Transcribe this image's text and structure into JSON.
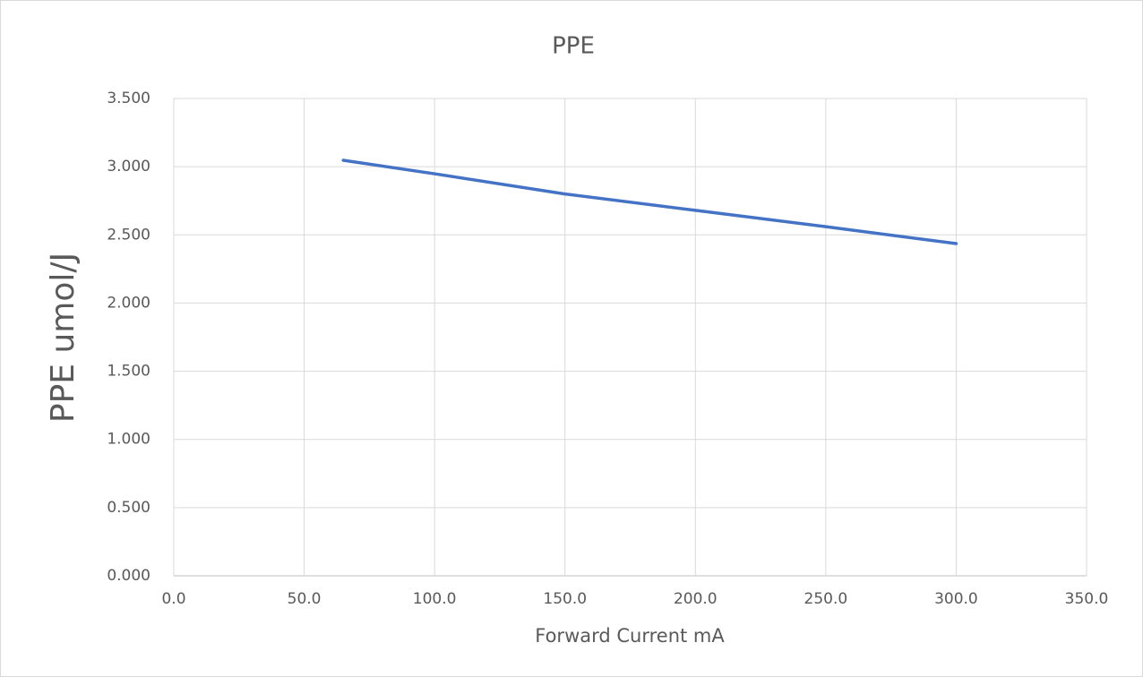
{
  "chart_data": {
    "type": "line",
    "title": "PPE",
    "x_label": "Forward Current mA",
    "y_label": "PPE umol/J",
    "xlim": [
      0,
      350
    ],
    "ylim": [
      0,
      3.5
    ],
    "xticks": [
      {
        "value": 0,
        "label": "0.0"
      },
      {
        "value": 50,
        "label": "50.0"
      },
      {
        "value": 100,
        "label": "100.0"
      },
      {
        "value": 150,
        "label": "150.0"
      },
      {
        "value": 200,
        "label": "200.0"
      },
      {
        "value": 250,
        "label": "250.0"
      },
      {
        "value": 300,
        "label": "300.0"
      },
      {
        "value": 350,
        "label": "350.0"
      }
    ],
    "yticks": [
      {
        "value": 0,
        "label": "0.000"
      },
      {
        "value": 0.5,
        "label": "0.500"
      },
      {
        "value": 1,
        "label": "1.000"
      },
      {
        "value": 1.5,
        "label": "1.500"
      },
      {
        "value": 2,
        "label": "2.000"
      },
      {
        "value": 2.5,
        "label": "2.500"
      },
      {
        "value": 3,
        "label": "3.000"
      },
      {
        "value": 3.5,
        "label": "3.500"
      }
    ],
    "grid": true,
    "x": [
      65,
      100,
      150,
      200,
      250,
      300
    ],
    "series": [
      {
        "color": "#4472c4",
        "values": [
          3.047,
          2.948,
          2.8,
          2.68,
          2.56,
          2.436
        ]
      }
    ]
  }
}
